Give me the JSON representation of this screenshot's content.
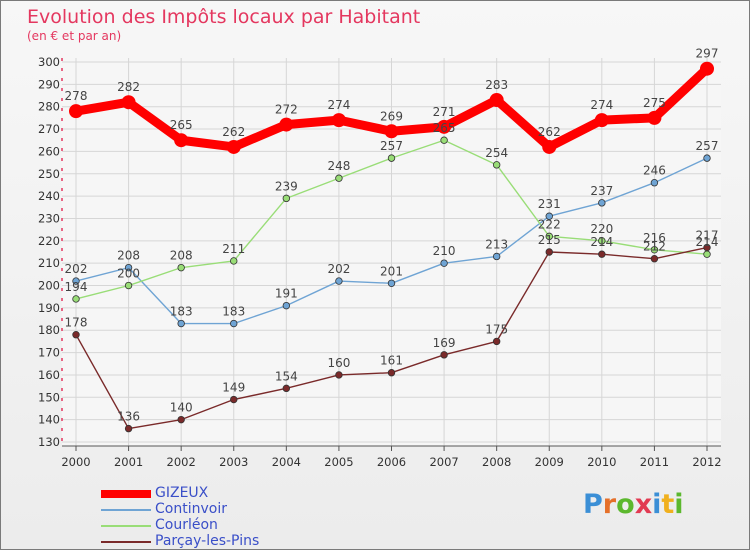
{
  "title": "Evolution des Impôts locaux par Habitant",
  "subtitle": "(en € et par an)",
  "logo": {
    "letters": [
      "P",
      "r",
      "o",
      "x",
      "i",
      "t",
      "i"
    ],
    "colors": [
      "#3b8fd6",
      "#e5702a",
      "#5cb82e",
      "#e23a52",
      "#3b8fd6",
      "#f0b01e",
      "#5cb82e"
    ]
  },
  "chart_data": {
    "type": "line",
    "x": [
      "2000",
      "2001",
      "2002",
      "2003",
      "2004",
      "2005",
      "2006",
      "2007",
      "2008",
      "2009",
      "2010",
      "2011",
      "2012"
    ],
    "ylim": [
      130,
      300
    ],
    "yticks": [
      "130",
      "140",
      "150",
      "160",
      "170",
      "180",
      "190",
      "200",
      "210",
      "220",
      "230",
      "240",
      "250",
      "260",
      "270",
      "280",
      "290",
      "300"
    ],
    "grid": true,
    "legend_position": "bottom-left",
    "series": [
      {
        "name": "GIZEUX",
        "color": "#ff0000",
        "values": [
          278,
          282,
          265,
          262,
          272,
          274,
          269,
          271,
          283,
          262,
          274,
          275,
          297
        ],
        "labels": [
          "278",
          "282",
          "265",
          "262",
          "272",
          "274",
          "269",
          "271",
          "283",
          "262",
          "274",
          "275",
          "297"
        ]
      },
      {
        "name": "Continvoir",
        "color": "#6fa4d4",
        "values": [
          202,
          208,
          183,
          183,
          191,
          202,
          201,
          210,
          213,
          231,
          237,
          246,
          257
        ],
        "labels": [
          "202",
          "208",
          "183",
          "183",
          "191",
          "202",
          "201",
          "210",
          "213",
          "231",
          "237",
          "246",
          "257"
        ]
      },
      {
        "name": "Courléon",
        "color": "#99dd77",
        "values": [
          194,
          200,
          208,
          211,
          239,
          248,
          257,
          265,
          254,
          222,
          220,
          216,
          214
        ],
        "labels": [
          "194",
          "200",
          "208",
          "211",
          "239",
          "248",
          "257",
          "265",
          "254",
          "222",
          "220",
          "216",
          "214"
        ]
      },
      {
        "name": "Parçay-les-Pins",
        "color": "#7a2a2a",
        "values": [
          178,
          136,
          140,
          149,
          154,
          160,
          161,
          169,
          175,
          215,
          214,
          212,
          217
        ],
        "labels": [
          "178",
          "136",
          "140",
          "149",
          "154",
          "160",
          "161",
          "169",
          "175",
          "215",
          "214",
          "212",
          "217"
        ]
      }
    ]
  }
}
